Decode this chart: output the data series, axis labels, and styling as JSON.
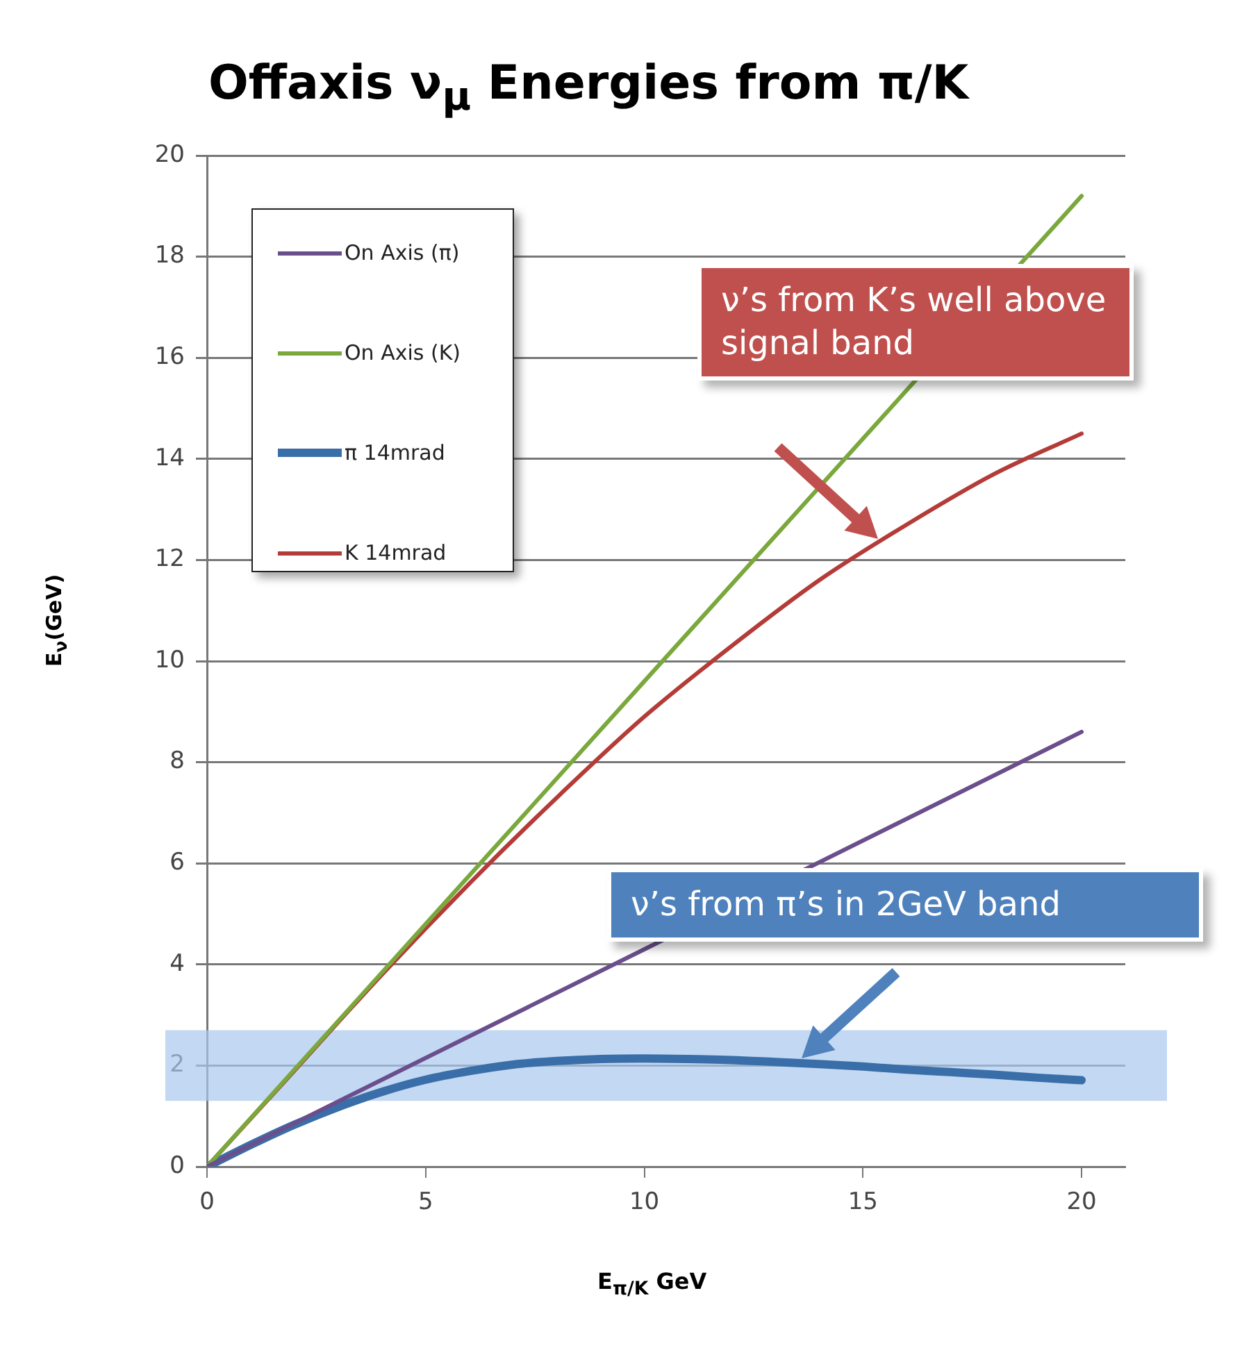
{
  "chart_data": {
    "type": "line",
    "title": "Offaxis ν$_{μ}$ Energies from π/K",
    "xlabel": "E$_{π/K}$ GeV",
    "ylabel": "E$_{ν}$(GeV)",
    "xlim": [
      0,
      21
    ],
    "xticks": [
      0,
      5,
      10,
      15,
      20
    ],
    "ylim": [
      0,
      20
    ],
    "yticks": [
      0,
      2,
      4,
      6,
      8,
      10,
      12,
      14,
      16,
      18,
      20
    ],
    "grid": "y",
    "legend": "top left",
    "marker": "none",
    "line_style": "solid",
    "series": [
      {
        "name": "On Axis (π)",
        "color": "#6a4f8c",
        "x": [
          0,
          20
        ],
        "values": [
          0,
          8.6
        ]
      },
      {
        "name": "On Axis (K)",
        "color": "#7aa83c",
        "x": [
          0,
          20
        ],
        "values": [
          0,
          19.2
        ]
      },
      {
        "name": "π 14mrad",
        "color": "#3a6ea8",
        "x": [
          0,
          1,
          2,
          3,
          4,
          5,
          6,
          7,
          8,
          9,
          10,
          11,
          12,
          13,
          14,
          15,
          16,
          17,
          18,
          19,
          20
        ],
        "values": [
          0,
          0.43,
          0.83,
          1.18,
          1.48,
          1.72,
          1.89,
          2.02,
          2.09,
          2.13,
          2.14,
          2.13,
          2.11,
          2.07,
          2.03,
          1.98,
          1.92,
          1.87,
          1.82,
          1.76,
          1.71
        ]
      },
      {
        "name": "K 14mrad",
        "color": "#b43c38",
        "x": [
          0,
          2,
          4,
          6,
          8,
          10,
          12,
          14,
          16,
          18,
          20
        ],
        "values": [
          0,
          1.9,
          3.8,
          5.6,
          7.3,
          8.9,
          10.3,
          11.6,
          12.7,
          13.7,
          14.5
        ]
      }
    ],
    "bands": [
      {
        "axis": "y",
        "from": 1.3,
        "to": 2.7,
        "color": "#a9c8ee"
      }
    ],
    "annotations": [
      "ν’s from K’s well above signal band",
      "ν’s from π’s in 2GeV band"
    ]
  }
}
